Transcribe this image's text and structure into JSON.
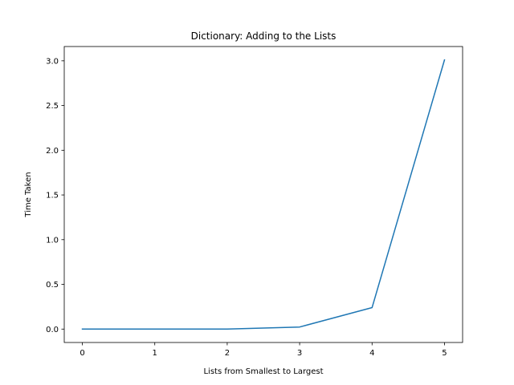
{
  "chart_data": {
    "type": "line",
    "title": "Dictionary: Adding to the Lists",
    "xlabel": "Lists from Smallest to Largest",
    "ylabel": "Time Taken",
    "x": [
      0,
      1,
      2,
      3,
      4,
      5
    ],
    "series": [
      {
        "values": [
          0.0005,
          0.0007,
          0.0007,
          0.023,
          0.24,
          3.01
        ]
      }
    ],
    "xticks": [
      0,
      1,
      2,
      3,
      4,
      5
    ],
    "xtick_labels": [
      "0",
      "1",
      "2",
      "3",
      "4",
      "5"
    ],
    "yticks": [
      0.0,
      0.5,
      1.0,
      1.5,
      2.0,
      2.5,
      3.0
    ],
    "ytick_labels": [
      "0.0",
      "0.5",
      "1.0",
      "1.5",
      "2.0",
      "2.5",
      "3.0"
    ],
    "xlim": [
      -0.25,
      5.25
    ],
    "ylim": [
      -0.15,
      3.16
    ],
    "grid": false,
    "legend": "none",
    "line_color": "#1f77b4"
  }
}
